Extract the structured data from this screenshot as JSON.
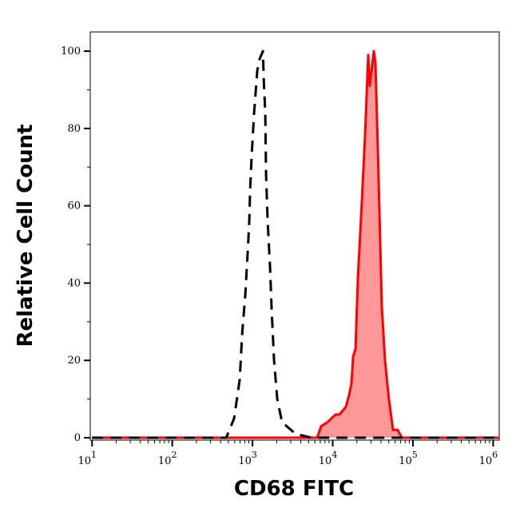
{
  "chart_data": {
    "type": "area",
    "title": "",
    "xlabel": "CD68 FITC",
    "ylabel": "Relative Cell Count",
    "xscale": "log",
    "xlim": [
      9.5,
      1190000
    ],
    "ylim": [
      0,
      105
    ],
    "x_ticks": [
      {
        "base": "10",
        "exp": "1",
        "value": 10
      },
      {
        "base": "10",
        "exp": "2",
        "value": 100
      },
      {
        "base": "10",
        "exp": "3",
        "value": 1000
      },
      {
        "base": "10",
        "exp": "4",
        "value": 10000
      },
      {
        "base": "10",
        "exp": "5",
        "value": 100000
      },
      {
        "base": "10",
        "exp": "6",
        "value": 1000000
      }
    ],
    "y_ticks": [
      "0",
      "20",
      "40",
      "60",
      "80",
      "100"
    ],
    "grid": false,
    "series": [
      {
        "style": "dashed",
        "color": "#000000",
        "fill": "none",
        "x": [
          10,
          470,
          590,
          693,
          743,
          813,
          871,
          912,
          933,
          977,
          1047,
          1148,
          1230,
          1349,
          1378,
          1443,
          1476,
          1545,
          1656,
          1734,
          1858,
          2034,
          2333,
          3444,
          5445,
          1190000
        ],
        "y": [
          0,
          0,
          5,
          15,
          27,
          37,
          48,
          56,
          64,
          73,
          84,
          95,
          98,
          100,
          93,
          84,
          68,
          56,
          44,
          33,
          20,
          10,
          4,
          1,
          0,
          0
        ]
      },
      {
        "style": "solid",
        "color": "#ff0000",
        "fill": "#ff9999",
        "x": [
          10,
          6400,
          7180,
          8610,
          10840,
          12160,
          14600,
          16000,
          17140,
          17950,
          19230,
          20560,
          23070,
          25290,
          27730,
          29040,
          32540,
          34070,
          36510,
          40920,
          44850,
          50230,
          56360,
          64710,
          72610,
          1190000
        ],
        "y": [
          0,
          0,
          3,
          4,
          6,
          6,
          8,
          11,
          14,
          21,
          23,
          41,
          61,
          78,
          99,
          91,
          100,
          97,
          75,
          34,
          20,
          10,
          2,
          2,
          0,
          0
        ]
      }
    ]
  }
}
